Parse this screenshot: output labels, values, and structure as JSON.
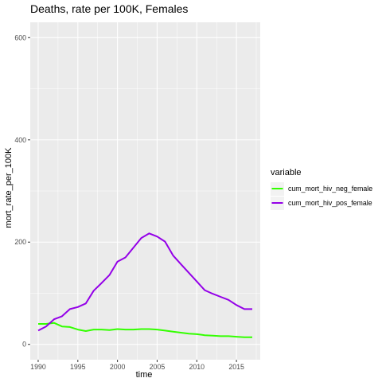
{
  "chart_data": {
    "type": "line",
    "title": "Deaths, rate per 100K, Females",
    "xlabel": "time",
    "ylabel": "mort_rate_per_100K",
    "xlim": [
      1989,
      2018
    ],
    "ylim": [
      -30,
      630
    ],
    "x_ticks": [
      1990,
      1995,
      2000,
      2005,
      2010,
      2015
    ],
    "y_ticks": [
      0,
      200,
      400,
      600
    ],
    "grid": true,
    "legend": {
      "title": "variable",
      "position": "right"
    },
    "x": [
      1990,
      1991,
      1992,
      1993,
      1994,
      1995,
      1996,
      1997,
      1998,
      1999,
      2000,
      2001,
      2002,
      2003,
      2004,
      2005,
      2006,
      2007,
      2008,
      2009,
      2010,
      2011,
      2012,
      2013,
      2014,
      2015,
      2016,
      2017
    ],
    "series": [
      {
        "name": "cum_mort_hiv_neg_female",
        "color": "#33ff00",
        "values": [
          40,
          40,
          42,
          35,
          34,
          29,
          26,
          29,
          29,
          28,
          30,
          29,
          29,
          30,
          30,
          29,
          27,
          25,
          23,
          21,
          20,
          18,
          17,
          16,
          16,
          15,
          14,
          14
        ]
      },
      {
        "name": "cum_mort_hiv_pos_female",
        "color": "#9400e8",
        "values": [
          27,
          35,
          49,
          55,
          69,
          73,
          80,
          105,
          120,
          136,
          162,
          170,
          189,
          208,
          217,
          211,
          201,
          174,
          157,
          140,
          123,
          106,
          99,
          93,
          87,
          77,
          69,
          69
        ]
      }
    ]
  }
}
